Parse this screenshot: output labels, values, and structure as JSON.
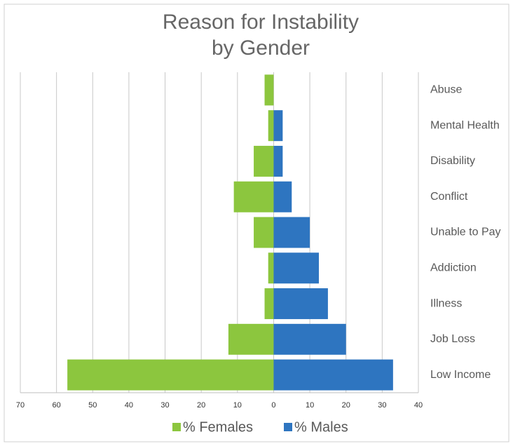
{
  "chart_data": {
    "type": "butterfly-bar",
    "title": [
      "Reason for Instability",
      "by Gender"
    ],
    "categories": [
      "Abuse",
      "Mental Health",
      "Disability",
      "Conflict",
      "Unable to Pay",
      "Addiction",
      "Illness",
      "Job Loss",
      "Low Income"
    ],
    "series": [
      {
        "name": "% Females",
        "color": "#8cc63e",
        "values": [
          -2.5,
          -1.5,
          -5.5,
          -11,
          -5.5,
          -1.5,
          -2.5,
          -12.5,
          -57
        ]
      },
      {
        "name": "% Males",
        "color": "#2e75c0",
        "values": [
          0,
          2.5,
          2.5,
          5,
          10,
          12.5,
          15,
          20,
          33
        ]
      }
    ],
    "xlim": [
      -70,
      40
    ],
    "xticks": [
      {
        "value": -70,
        "label": "70"
      },
      {
        "value": -60,
        "label": "60"
      },
      {
        "value": -50,
        "label": "50"
      },
      {
        "value": -40,
        "label": "40"
      },
      {
        "value": -30,
        "label": "30"
      },
      {
        "value": -20,
        "label": "20"
      },
      {
        "value": -10,
        "label": "10"
      },
      0,
      10,
      20,
      30,
      40
    ],
    "grid": true,
    "legend": "bottom"
  }
}
